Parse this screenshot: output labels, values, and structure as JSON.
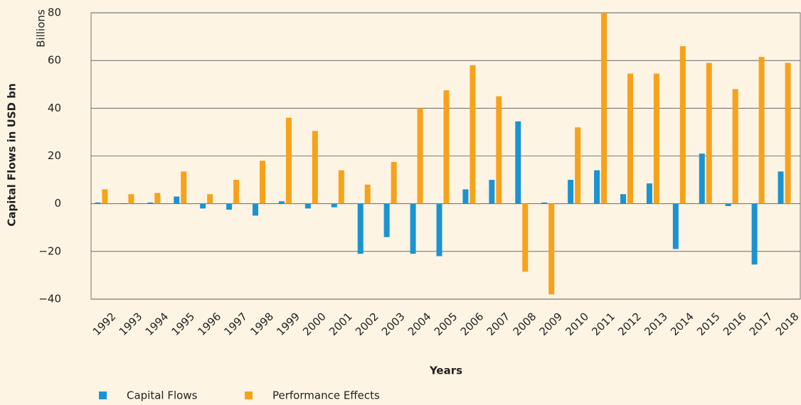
{
  "chart_data": {
    "type": "bar",
    "y_unit_label": "Billions",
    "y_axis_label": "Capital Flows in USD bn",
    "x_axis_label": "Years",
    "categories": [
      "1992",
      "1993",
      "1994",
      "1995",
      "1996",
      "1997",
      "1998",
      "1999",
      "2000",
      "2001",
      "2002",
      "2003",
      "2004",
      "2005",
      "2006",
      "2007",
      "2008",
      "2009",
      "2010",
      "2011",
      "2012",
      "2013",
      "2014",
      "2015",
      "2016",
      "2017",
      "2018"
    ],
    "series": [
      {
        "name": "Capital Flows",
        "color": "#1b93d2",
        "values": [
          0.5,
          0.2,
          0.5,
          3,
          -2,
          -2.5,
          -5,
          1,
          -2,
          -1.5,
          -21,
          -14,
          -21,
          -22,
          6,
          10,
          34.5,
          0.5,
          10,
          14,
          4,
          8.5,
          -19,
          21,
          -1,
          -25.5,
          13.5
        ]
      },
      {
        "name": "Performance Effects",
        "color": "#f7a21b",
        "values": [
          6,
          4,
          4.5,
          13.5,
          4,
          10,
          18,
          36,
          30.5,
          14,
          8,
          17.5,
          40,
          47.5,
          58,
          45,
          -28.5,
          -38,
          32,
          80,
          54.5,
          54.5,
          66,
          59,
          48,
          61.5,
          59
        ]
      }
    ],
    "ylim": [
      -40,
      80
    ],
    "yticks": [
      {
        "value": -40,
        "label": "−40"
      },
      {
        "value": -20,
        "label": "−20"
      },
      0,
      20,
      40,
      60,
      80
    ],
    "grid": true,
    "legend": "bottom-left"
  }
}
